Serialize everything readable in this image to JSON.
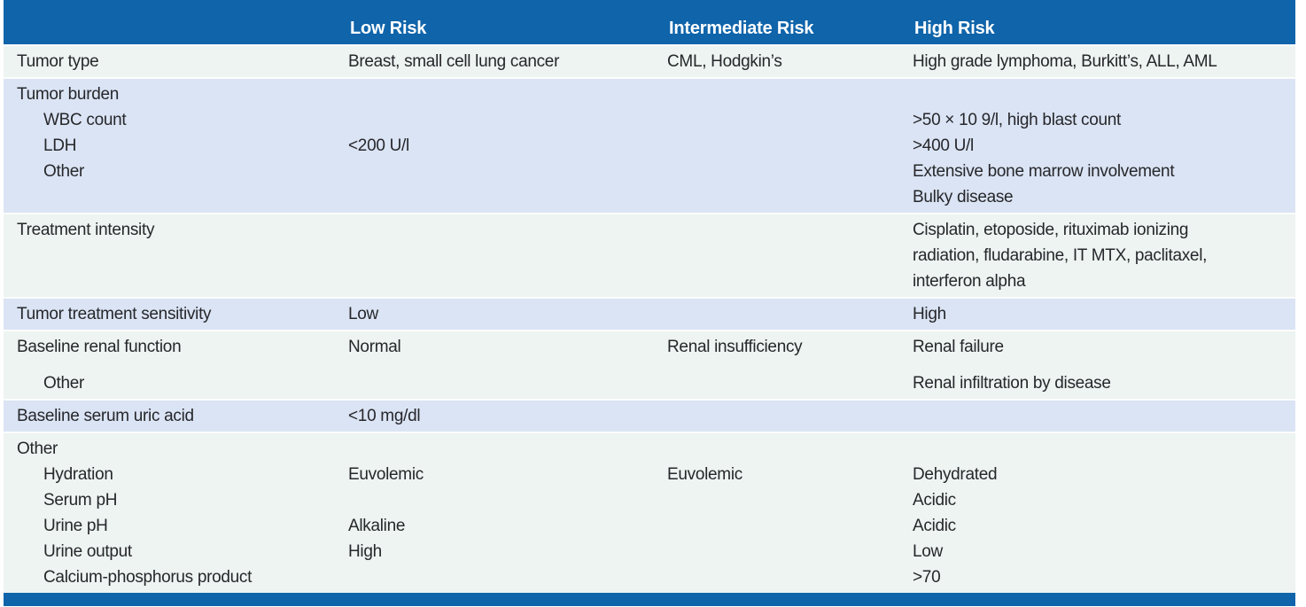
{
  "colors": {
    "header_bg": "#0f64aa",
    "band_light": "#edf4f1",
    "band_blue": "#dbe4f4",
    "header_text": "#ffffff",
    "body_text": "#26272b"
  },
  "header": {
    "columns": [
      "",
      "Low Risk",
      "Intermediate Risk",
      "High Risk"
    ]
  },
  "sections": [
    {
      "id": "tumor-type",
      "tone": "light",
      "rows": [
        {
          "label": "Tumor type",
          "low": "Breast, small cell lung cancer",
          "intermediate": "CML, Hodgkin’s",
          "high": "High grade lymphoma, Burkitt’s, ALL, AML"
        }
      ]
    },
    {
      "id": "tumor-burden",
      "tone": "blue",
      "rows": [
        {
          "label": "Tumor burden"
        },
        {
          "label": "WBC count",
          "indent": 1,
          "high": ">50 × 10 9/l, high blast count"
        },
        {
          "label": "LDH",
          "indent": 1,
          "low": "<200 U/l",
          "high": ">400 U/l"
        },
        {
          "label": "Other",
          "indent": 1,
          "high": "Extensive bone marrow involvement"
        },
        {
          "high": "Bulky disease"
        }
      ]
    },
    {
      "id": "treatment-intensity",
      "tone": "light",
      "rows": [
        {
          "label": "Treatment intensity",
          "high": "Cisplatin, etoposide, rituximab ionizing"
        },
        {
          "high": "radiation, fludarabine, IT MTX, paclitaxel,"
        },
        {
          "high": "interferon alpha"
        }
      ]
    },
    {
      "id": "tumor-treatment-sensitivity",
      "tone": "blue",
      "rows": [
        {
          "label": "Tumor treatment sensitivity",
          "low": "Low",
          "high": "High"
        }
      ]
    },
    {
      "id": "baseline-renal-function",
      "tone": "light",
      "rows": [
        {
          "label": "Baseline renal function",
          "low": "Normal",
          "intermediate": "Renal insufficiency",
          "high": "Renal failure"
        },
        {
          "label": "Other",
          "indent": 1,
          "high": "Renal infiltration by disease",
          "gap_above": true
        }
      ]
    },
    {
      "id": "baseline-serum-uric-acid",
      "tone": "blue",
      "rows": [
        {
          "label": "Baseline serum uric acid",
          "low": "<10 mg/dl"
        }
      ]
    },
    {
      "id": "other",
      "tone": "light",
      "rows": [
        {
          "label": "Other"
        },
        {
          "label": "Hydration",
          "indent": 1,
          "low": "Euvolemic",
          "intermediate": "Euvolemic",
          "high": "Dehydrated"
        },
        {
          "label": "Serum pH",
          "indent": 1,
          "high": "Acidic"
        },
        {
          "label": "Urine pH",
          "indent": 1,
          "low": "Alkaline",
          "high": "Acidic"
        },
        {
          "label": "Urine output",
          "indent": 1,
          "low": "High",
          "high": "Low"
        },
        {
          "label": "Calcium-phosphorus product",
          "indent": 1,
          "high": ">70"
        }
      ]
    }
  ]
}
